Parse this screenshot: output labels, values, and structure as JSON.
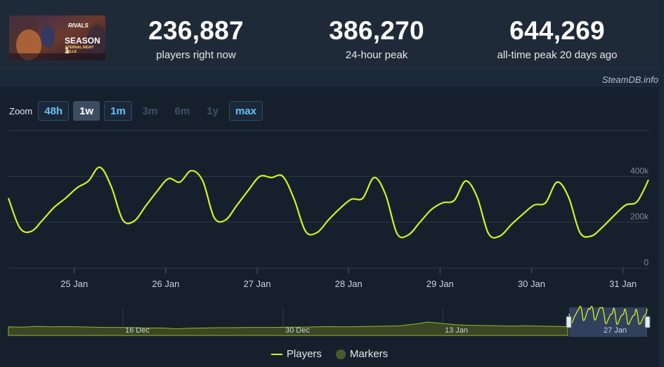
{
  "header": {
    "banner": {
      "logo_text": "RIVALS",
      "title_line1": "SEASON 1",
      "title_line2": "ETERNAL NIGHT FALLS"
    },
    "stats": [
      {
        "value": "236,887",
        "label": "players right now"
      },
      {
        "value": "386,270",
        "label": "24-hour peak"
      },
      {
        "value": "644,269",
        "label": "all-time peak 20 days ago"
      }
    ]
  },
  "credit": "SteamDB.info",
  "zoom": {
    "label": "Zoom",
    "options": [
      {
        "label": "48h",
        "state": "active"
      },
      {
        "label": "1w",
        "state": "selected"
      },
      {
        "label": "1m",
        "state": "active"
      },
      {
        "label": "3m",
        "state": "disabled"
      },
      {
        "label": "6m",
        "state": "disabled"
      },
      {
        "label": "1y",
        "state": "disabled"
      },
      {
        "label": "max",
        "state": "active"
      }
    ]
  },
  "legend": {
    "players": "Players",
    "markers": "Markers"
  },
  "colors": {
    "line": "#d4f21f",
    "navigator_fill": "#3a4624",
    "navigator_line": "#9ab81a",
    "selection": "#3a4b6d",
    "grid": "#2c3a49"
  },
  "chart_data": {
    "type": "line",
    "series": [
      {
        "name": "Players",
        "x": [
          0.0,
          0.125,
          0.25,
          0.375,
          0.5,
          0.625,
          0.75,
          0.875,
          1.0,
          1.125,
          1.25,
          1.375,
          1.5,
          1.625,
          1.75,
          1.875,
          2.0,
          2.125,
          2.25,
          2.375,
          2.5,
          2.625,
          2.75,
          2.875,
          3.0,
          3.125,
          3.25,
          3.375,
          3.5,
          3.625,
          3.75,
          3.875,
          4.0,
          4.125,
          4.25,
          4.375,
          4.5,
          4.625,
          4.75,
          4.875,
          5.0,
          5.125,
          5.25,
          5.375,
          5.5,
          5.625,
          5.75,
          5.875,
          6.0,
          6.125,
          6.25,
          6.375,
          6.5,
          6.625,
          6.75,
          6.875,
          7.0
        ],
        "values": [
          305000,
          175000,
          160000,
          210000,
          265000,
          305000,
          350000,
          380000,
          440000,
          355000,
          210000,
          205000,
          270000,
          335000,
          390000,
          375000,
          425000,
          380000,
          220000,
          210000,
          275000,
          340000,
          400000,
          395000,
          400000,
          300000,
          160000,
          155000,
          210000,
          260000,
          300000,
          305000,
          395000,
          320000,
          150000,
          145000,
          200000,
          255000,
          285000,
          295000,
          380000,
          310000,
          150000,
          140000,
          190000,
          235000,
          275000,
          285000,
          375000,
          310000,
          155000,
          140000,
          180000,
          230000,
          275000,
          290000,
          385000
        ]
      }
    ],
    "x_tick_labels": [
      "25 Jan",
      "26 Jan",
      "27 Jan",
      "28 Jan",
      "29 Jan",
      "30 Jan",
      "31 Jan"
    ],
    "y_tick_labels": [
      "0",
      "200k",
      "400k"
    ],
    "ylim": [
      0,
      600000
    ],
    "grid": true,
    "legend_position": "bottom-center",
    "navigator": {
      "labels": [
        "16 Dec",
        "30 Dec",
        "13 Jan",
        "27 Jan"
      ],
      "values": [
        0.32,
        0.31,
        0.34,
        0.32,
        0.33,
        0.32,
        0.31,
        0.3,
        0.3,
        0.29,
        0.28,
        0.28,
        0.25,
        0.27,
        0.28,
        0.29,
        0.29,
        0.3,
        0.3,
        0.3,
        0.31,
        0.31,
        0.32,
        0.33,
        0.32,
        0.33,
        0.34,
        0.35,
        0.36,
        0.42,
        0.5,
        0.45,
        0.4,
        0.38,
        0.37,
        0.36,
        0.35,
        0.36,
        0.35,
        0.34,
        0.33
      ]
    }
  }
}
